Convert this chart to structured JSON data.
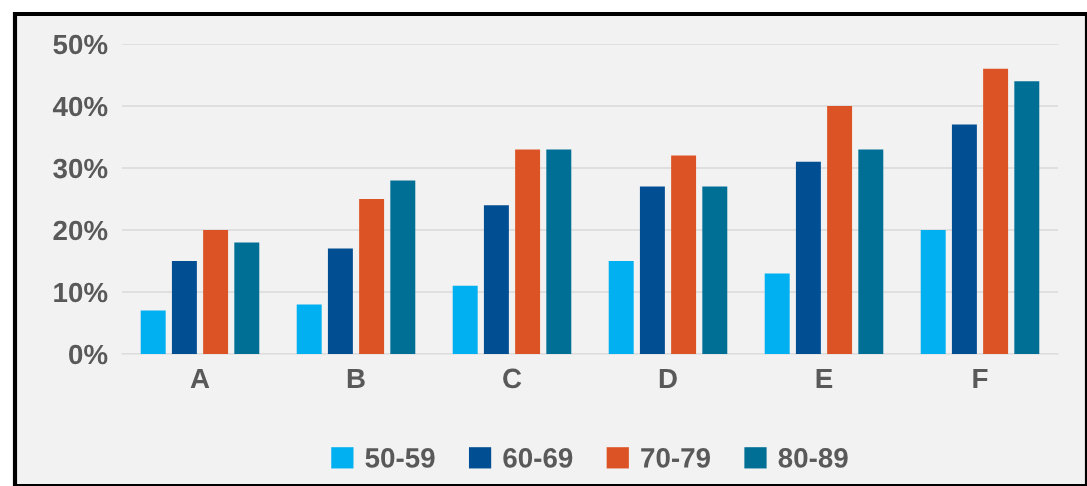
{
  "chart_data": {
    "type": "bar",
    "categories": [
      "A",
      "B",
      "C",
      "D",
      "E",
      "F"
    ],
    "series": [
      {
        "name": "50-59",
        "color": "#00b0f0",
        "values": [
          7,
          8,
          11,
          15,
          13,
          20
        ]
      },
      {
        "name": "60-69",
        "color": "#024e92",
        "values": [
          15,
          17,
          24,
          27,
          31,
          37
        ]
      },
      {
        "name": "70-79",
        "color": "#dc5426",
        "values": [
          20,
          25,
          33,
          32,
          40,
          46
        ]
      },
      {
        "name": "80-89",
        "color": "#006f96",
        "values": [
          18,
          28,
          33,
          27,
          33,
          44
        ]
      }
    ],
    "ylim": [
      0,
      50
    ],
    "yticks": [
      {
        "value": 0,
        "label": "0%"
      },
      {
        "value": 10,
        "label": "10%"
      },
      {
        "value": 20,
        "label": "20%"
      },
      {
        "value": 30,
        "label": "30%"
      },
      {
        "value": 40,
        "label": "40%"
      },
      {
        "value": 50,
        "label": "50%"
      }
    ],
    "grid": "y",
    "legend": "bottom"
  }
}
